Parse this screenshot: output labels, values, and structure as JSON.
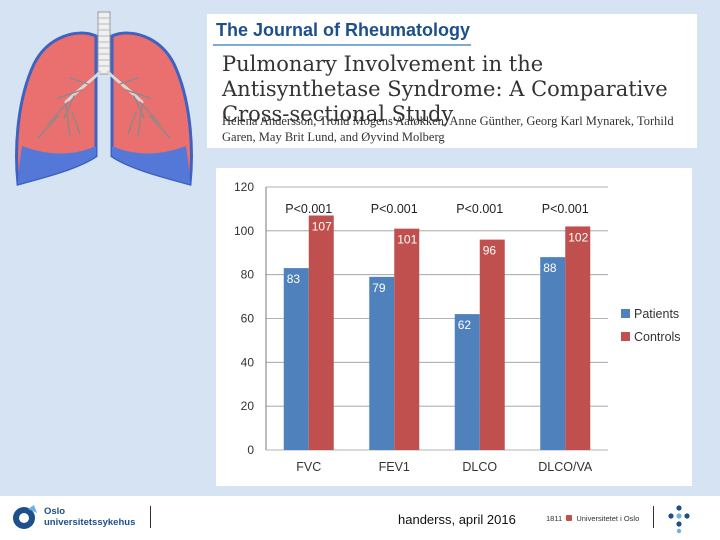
{
  "journal": {
    "name": "The Journal of Rheumatology",
    "title": "Pulmonary Involvement in the Antisynthetase Syndrome: A Comparative Cross-sectional Study",
    "authors": "Helena Andersson, Trond Mogens Aaløkken, Anne Günther, Georg Karl Mynarek, Torhild Garen, May Brit Lund, and Øyvind Molberg"
  },
  "colors": {
    "patients": "#4f81bd",
    "controls": "#c0504d",
    "lung_fill": "#ea6f6f",
    "lung_outline": "#3f62c2",
    "lung_lower": "#5478d8"
  },
  "chart_data": {
    "type": "bar",
    "categories": [
      "FVC",
      "FEV1",
      "DLCO",
      "DLCO/VA"
    ],
    "series": [
      {
        "name": "Patients",
        "values": [
          83,
          79,
          62,
          88
        ]
      },
      {
        "name": "Controls",
        "values": [
          107,
          101,
          96,
          102
        ]
      }
    ],
    "p_values": [
      "P<0.001",
      "P<0.001",
      "P<0.001",
      "P<0.001"
    ],
    "ylim": [
      0,
      120
    ],
    "yticks": [
      0,
      20,
      40,
      60,
      80,
      100,
      120
    ],
    "grid": true,
    "legend": "right",
    "title": "",
    "xlabel": "",
    "ylabel": ""
  },
  "footer": {
    "hospital_line1": "Oslo",
    "hospital_line2": "universitetssykehus",
    "text": "handerss, april 2016",
    "uio_year": "1811",
    "uio_name": "Universitetet i Oslo"
  },
  "icons": {
    "lungs": "lungs-illustration",
    "hospital": "oslo-hospital-logo",
    "uio": "uio-dots-logo"
  }
}
